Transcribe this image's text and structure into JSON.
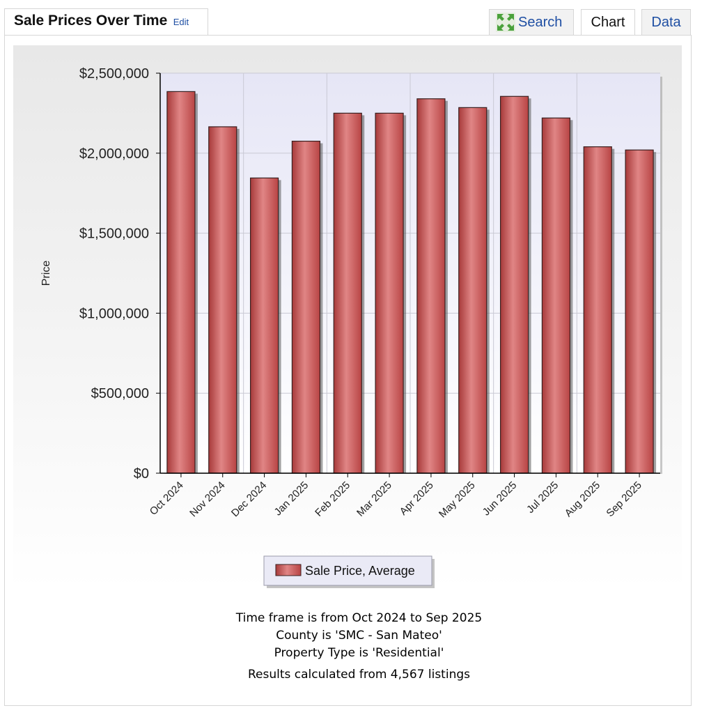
{
  "header": {
    "title": "Sale Prices Over Time",
    "edit_label": "Edit",
    "tabs": {
      "search": "Search",
      "chart": "Chart",
      "data": "Data"
    },
    "search_icon": "expand-arrows-icon"
  },
  "chart_data": {
    "type": "bar",
    "ylabel": "Price",
    "ylim": [
      0,
      2500000
    ],
    "yticks": [
      0,
      500000,
      1000000,
      1500000,
      2000000,
      2500000
    ],
    "ytick_labels": [
      "$0",
      "$500,000",
      "$1,000,000",
      "$1,500,000",
      "$2,000,000",
      "$2,500,000"
    ],
    "categories": [
      "Oct 2024",
      "Nov 2024",
      "Dec 2024",
      "Jan 2025",
      "Feb 2025",
      "Mar 2025",
      "Apr 2025",
      "May 2025",
      "Jun 2025",
      "Jul 2025",
      "Aug 2025",
      "Sep 2025"
    ],
    "series": [
      {
        "name": "Sale Price, Average",
        "color": "#c24848",
        "values": [
          2385000,
          2165000,
          1845000,
          2075000,
          2250000,
          2250000,
          2340000,
          2285000,
          2355000,
          2220000,
          2040000,
          2020000
        ]
      }
    ],
    "grid": true,
    "legend": "bottom-center"
  },
  "footer": {
    "time_frame": "Time frame is from Oct 2024 to Sep 2025",
    "county": "County is 'SMC - San Mateo'",
    "property_type": "Property Type is 'Residential'",
    "results": "Results calculated from 4,567 listings"
  }
}
